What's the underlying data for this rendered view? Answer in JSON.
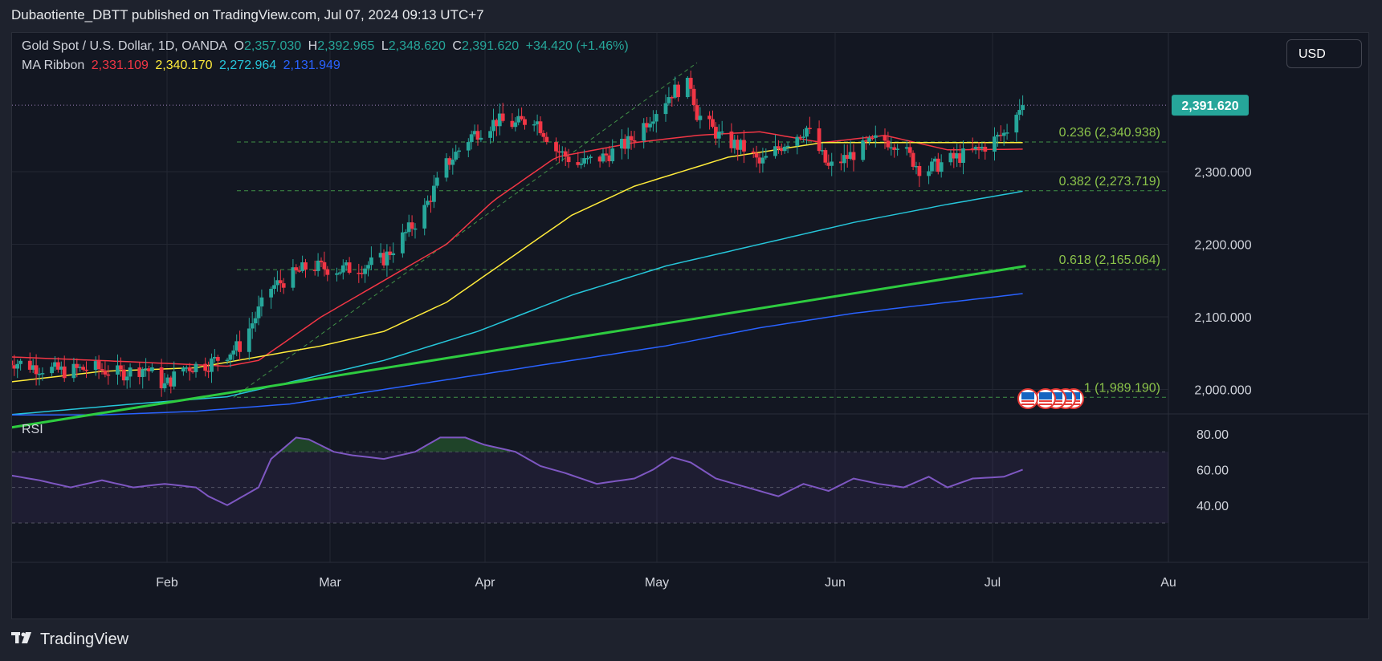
{
  "header": {
    "title": "Dubaotiente_DBTT published on TradingView.com, Jul 07, 2024 09:13 UTC+7"
  },
  "legend": {
    "symbol": "Gold Spot / U.S. Dollar, 1D, OANDA",
    "o_label": "O",
    "o_value": "2,357.030",
    "h_label": "H",
    "h_value": "2,392.965",
    "l_label": "L",
    "l_value": "2,348.620",
    "c_label": "C",
    "c_value": "2,391.620",
    "change": "+34.420 (+1.46%)",
    "ma_label": "MA Ribbon",
    "ma_values": [
      "2,331.109",
      "2,340.170",
      "2,272.964",
      "2,131.949"
    ],
    "ma_colors": [
      "#f23645",
      "#ffeb3b",
      "#26c6da",
      "#2962ff"
    ]
  },
  "currency": "USD",
  "price_badge": "2,391.620",
  "rsi_label": "RSI",
  "footer": {
    "brand": "TradingView"
  },
  "colors": {
    "up": "#26a69a",
    "down": "#f23645",
    "fib": "#4caf50",
    "trend": "#2ecc40",
    "rsi": "#7e57c2"
  },
  "chart_data": {
    "type": "candlestick",
    "price_axis": {
      "ticks": [
        "2,300.000",
        "2,200.000",
        "2,100.000",
        "2,000.000"
      ],
      "values": [
        2300,
        2200,
        2100,
        2000
      ]
    },
    "rsi_axis": {
      "ticks": [
        "80.00",
        "60.00",
        "40.00"
      ],
      "values": [
        80,
        60,
        40
      ],
      "band": [
        30,
        70
      ],
      "mid": 50
    },
    "x_ticks": [
      "Feb",
      "Mar",
      "Apr",
      "May",
      "Jun",
      "Jul",
      "Au"
    ],
    "fib_levels": [
      {
        "label": "0.236 (2,340.938)",
        "value": 2340.938
      },
      {
        "label": "0.382 (2,273.719)",
        "value": 2273.719
      },
      {
        "label": "0.618 (2,165.064)",
        "value": 2165.064
      },
      {
        "label": "1 (1,989.190)",
        "value": 1989.19
      }
    ],
    "last_price": 2391.62,
    "anchors": {
      "close": [
        [
          0,
          2040
        ],
        [
          10,
          2030
        ],
        [
          18,
          2025
        ],
        [
          27,
          2030
        ],
        [
          36,
          2022
        ],
        [
          44,
          2030
        ],
        [
          50,
          2005
        ],
        [
          56,
          2030
        ],
        [
          64,
          2035
        ],
        [
          74,
          2060
        ],
        [
          84,
          2140
        ],
        [
          96,
          2170
        ],
        [
          106,
          2165
        ],
        [
          114,
          2170
        ],
        [
          120,
          2180
        ],
        [
          132,
          2240
        ],
        [
          140,
          2310
        ],
        [
          148,
          2350
        ],
        [
          156,
          2370
        ],
        [
          162,
          2365
        ],
        [
          168,
          2375
        ],
        [
          175,
          2330
        ],
        [
          182,
          2310
        ],
        [
          190,
          2320
        ],
        [
          198,
          2340
        ],
        [
          205,
          2375
        ],
        [
          212,
          2410
        ],
        [
          218,
          2420
        ],
        [
          220,
          2380
        ],
        [
          228,
          2345
        ],
        [
          236,
          2330
        ],
        [
          240,
          2310
        ],
        [
          248,
          2340
        ],
        [
          255,
          2360
        ],
        [
          262,
          2305
        ],
        [
          270,
          2325
        ],
        [
          278,
          2345
        ],
        [
          284,
          2340
        ],
        [
          292,
          2300
        ],
        [
          300,
          2315
        ],
        [
          310,
          2330
        ],
        [
          318,
          2352
        ],
        [
          324,
          2391.6
        ]
      ],
      "ma": [
        {
          "color": "#f23645",
          "points": [
            [
              0,
              2045
            ],
            [
              40,
              2038
            ],
            [
              70,
              2032
            ],
            [
              80,
              2040
            ],
            [
              100,
              2100
            ],
            [
              120,
              2150
            ],
            [
              140,
              2200
            ],
            [
              155,
              2260
            ],
            [
              175,
              2320
            ],
            [
              200,
              2340
            ],
            [
              220,
              2350
            ],
            [
              240,
              2355
            ],
            [
              260,
              2340
            ],
            [
              280,
              2350
            ],
            [
              300,
              2330
            ],
            [
              324,
              2331
            ]
          ]
        },
        {
          "color": "#ffeb3b",
          "points": [
            [
              0,
              2010
            ],
            [
              30,
              2025
            ],
            [
              60,
              2030
            ],
            [
              80,
              2045
            ],
            [
              100,
              2060
            ],
            [
              120,
              2080
            ],
            [
              140,
              2120
            ],
            [
              160,
              2180
            ],
            [
              180,
              2240
            ],
            [
              200,
              2280
            ],
            [
              230,
              2320
            ],
            [
              260,
              2340
            ],
            [
              290,
              2340
            ],
            [
              324,
              2340
            ]
          ]
        },
        {
          "color": "#26c6da",
          "points": [
            [
              0,
              1965
            ],
            [
              40,
              1980
            ],
            [
              70,
              1990
            ],
            [
              90,
              2010
            ],
            [
              120,
              2040
            ],
            [
              150,
              2080
            ],
            [
              180,
              2130
            ],
            [
              210,
              2170
            ],
            [
              240,
              2200
            ],
            [
              270,
              2230
            ],
            [
              300,
              2255
            ],
            [
              324,
              2273
            ]
          ]
        },
        {
          "color": "#2962ff",
          "points": [
            [
              0,
              1965
            ],
            [
              30,
              1965
            ],
            [
              60,
              1970
            ],
            [
              90,
              1980
            ],
            [
              120,
              2000
            ],
            [
              150,
              2020
            ],
            [
              180,
              2040
            ],
            [
              210,
              2060
            ],
            [
              240,
              2085
            ],
            [
              270,
              2105
            ],
            [
              300,
              2120
            ],
            [
              324,
              2132
            ]
          ]
        }
      ],
      "trend_line": [
        [
          0,
          1947
        ],
        [
          325,
          2170
        ]
      ],
      "rsi": [
        [
          0,
          57
        ],
        [
          10,
          54
        ],
        [
          20,
          50
        ],
        [
          30,
          54
        ],
        [
          40,
          50
        ],
        [
          50,
          52
        ],
        [
          60,
          50
        ],
        [
          64,
          45
        ],
        [
          70,
          40
        ],
        [
          80,
          50
        ],
        [
          84,
          66
        ],
        [
          92,
          78
        ],
        [
          96,
          77
        ],
        [
          104,
          70
        ],
        [
          110,
          68
        ],
        [
          120,
          66
        ],
        [
          130,
          70
        ],
        [
          138,
          78
        ],
        [
          146,
          78
        ],
        [
          152,
          74
        ],
        [
          162,
          70
        ],
        [
          170,
          62
        ],
        [
          178,
          58
        ],
        [
          188,
          52
        ],
        [
          200,
          55
        ],
        [
          206,
          60
        ],
        [
          212,
          67
        ],
        [
          218,
          64
        ],
        [
          226,
          55
        ],
        [
          236,
          50
        ],
        [
          246,
          45
        ],
        [
          254,
          52
        ],
        [
          262,
          48
        ],
        [
          270,
          55
        ],
        [
          278,
          52
        ],
        [
          286,
          50
        ],
        [
          294,
          56
        ],
        [
          300,
          50
        ],
        [
          308,
          55
        ],
        [
          318,
          56
        ],
        [
          324,
          60
        ]
      ]
    }
  }
}
